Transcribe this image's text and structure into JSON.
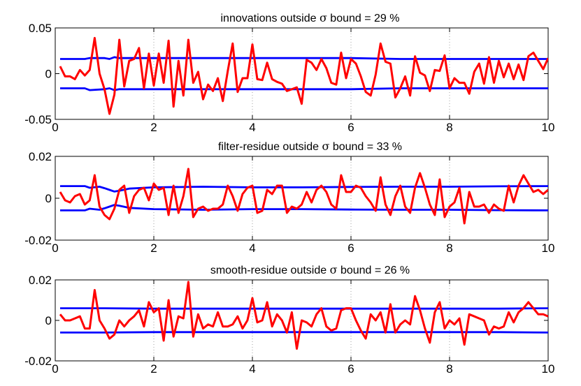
{
  "chart_data": [
    {
      "type": "line",
      "title": "innovations outside σ bound = 29 %",
      "title_prefix": "innovations outside",
      "title_symbol": "σ",
      "title_suffix": "bound = 29 %",
      "xlim": [
        0,
        10
      ],
      "ylim": [
        -0.05,
        0.05
      ],
      "xticks": [
        0,
        2,
        4,
        6,
        8,
        10
      ],
      "xtick_labels": [
        "0",
        "2",
        "4",
        "6",
        "8",
        "10"
      ],
      "yticks": [
        -0.05,
        0,
        0.05
      ],
      "ytick_labels": [
        "-0.05",
        "0",
        "0.05"
      ],
      "grid": "x",
      "x": [
        0.1,
        0.2,
        0.3,
        0.4,
        0.5,
        0.6,
        0.7,
        0.8,
        0.9,
        1.0,
        1.1,
        1.2,
        1.3,
        1.4,
        1.5,
        1.6,
        1.7,
        1.8,
        1.9,
        2.0,
        2.1,
        2.2,
        2.3,
        2.4,
        2.5,
        2.6,
        2.7,
        2.8,
        2.9,
        3.0,
        3.1,
        3.2,
        3.3,
        3.4,
        3.5,
        3.6,
        3.7,
        3.8,
        3.9,
        4.0,
        4.1,
        4.2,
        4.3,
        4.4,
        4.5,
        4.6,
        4.7,
        4.8,
        4.9,
        5.0,
        5.1,
        5.2,
        5.3,
        5.4,
        5.5,
        5.6,
        5.7,
        5.8,
        5.9,
        6.0,
        6.1,
        6.2,
        6.3,
        6.4,
        6.5,
        6.6,
        6.7,
        6.8,
        6.9,
        7.0,
        7.1,
        7.2,
        7.3,
        7.4,
        7.5,
        7.6,
        7.7,
        7.8,
        7.9,
        8.0,
        8.1,
        8.2,
        8.3,
        8.4,
        8.5,
        8.6,
        8.7,
        8.8,
        8.9,
        9.0,
        9.1,
        9.2,
        9.3,
        9.4,
        9.5,
        9.6,
        9.7,
        9.8,
        9.9,
        10.0
      ],
      "series": [
        {
          "role": "upper bound",
          "color": "#0000ff",
          "x": [
            0.1,
            0.6,
            0.7,
            1.0,
            1.1,
            1.2,
            1.3,
            1.5,
            2.0,
            3.0,
            4.0,
            5.0,
            6.0,
            7.0,
            8.0,
            9.0,
            10.0
          ],
          "values": [
            0.016,
            0.016,
            0.017,
            0.017,
            0.016,
            0.018,
            0.017,
            0.017,
            0.017,
            0.017,
            0.017,
            0.017,
            0.017,
            0.016,
            0.016,
            0.016,
            0.016
          ]
        },
        {
          "role": "lower bound",
          "color": "#0000ff",
          "x": [
            0.1,
            0.6,
            0.7,
            1.0,
            1.1,
            1.2,
            1.3,
            1.5,
            2.0,
            3.0,
            4.0,
            5.0,
            6.0,
            7.0,
            8.0,
            9.0,
            10.0
          ],
          "values": [
            -0.016,
            -0.016,
            -0.018,
            -0.017,
            -0.016,
            -0.018,
            -0.017,
            -0.017,
            -0.017,
            -0.017,
            -0.017,
            -0.017,
            -0.017,
            -0.016,
            -0.016,
            -0.016,
            -0.016
          ]
        },
        {
          "role": "innovations",
          "color": "#ff0000",
          "values": [
            0.008,
            -0.003,
            -0.003,
            -0.006,
            0.004,
            -0.002,
            0.004,
            0.039,
            0.0,
            -0.017,
            -0.044,
            -0.023,
            0.037,
            -0.014,
            0.014,
            0.016,
            0.028,
            -0.016,
            0.022,
            -0.013,
            0.022,
            -0.01,
            0.036,
            -0.036,
            0.014,
            -0.024,
            0.037,
            -0.01,
            0.002,
            -0.028,
            -0.012,
            -0.019,
            -0.005,
            -0.03,
            0.003,
            0.033,
            -0.02,
            -0.005,
            -0.005,
            0.032,
            -0.006,
            -0.007,
            0.012,
            -0.006,
            -0.009,
            -0.011,
            -0.019,
            -0.017,
            -0.015,
            -0.033,
            0.015,
            0.012,
            0.004,
            0.016,
            0.006,
            -0.01,
            -0.012,
            0.023,
            -0.005,
            0.016,
            0.011,
            -0.003,
            -0.02,
            -0.024,
            -0.001,
            0.033,
            0.013,
            0.011,
            -0.026,
            -0.016,
            -0.003,
            -0.024,
            0.019,
            0.001,
            -0.002,
            -0.019,
            0.004,
            0.003,
            0.02,
            -0.016,
            -0.005,
            -0.01,
            -0.01,
            -0.022,
            0.002,
            0.011,
            -0.011,
            0.018,
            -0.01,
            0.014,
            -0.004,
            0.011,
            -0.006,
            0.01,
            -0.007,
            0.019,
            0.023,
            0.014,
            0.005,
            0.017
          ]
        }
      ]
    },
    {
      "type": "line",
      "title": "filter-residue outside σ bound = 33 %",
      "title_prefix": "filter-residue outside",
      "title_symbol": "σ",
      "title_suffix": "bound = 33 %",
      "xlim": [
        0,
        10
      ],
      "ylim": [
        -0.02,
        0.02
      ],
      "xticks": [
        0,
        2,
        4,
        6,
        8,
        10
      ],
      "xtick_labels": [
        "0",
        "2",
        "4",
        "6",
        "8",
        "10"
      ],
      "yticks": [
        -0.02,
        0,
        0.02
      ],
      "ytick_labels": [
        "-0.02",
        "0",
        "0.02"
      ],
      "grid": "x",
      "x": [
        0.1,
        0.2,
        0.3,
        0.4,
        0.5,
        0.6,
        0.7,
        0.8,
        0.9,
        1.0,
        1.1,
        1.2,
        1.3,
        1.4,
        1.5,
        1.6,
        1.7,
        1.8,
        1.9,
        2.0,
        2.1,
        2.2,
        2.3,
        2.4,
        2.5,
        2.6,
        2.7,
        2.8,
        2.9,
        3.0,
        3.1,
        3.2,
        3.3,
        3.4,
        3.5,
        3.6,
        3.7,
        3.8,
        3.9,
        4.0,
        4.1,
        4.2,
        4.3,
        4.4,
        4.5,
        4.6,
        4.7,
        4.8,
        4.9,
        5.0,
        5.1,
        5.2,
        5.3,
        5.4,
        5.5,
        5.6,
        5.7,
        5.8,
        5.9,
        6.0,
        6.1,
        6.2,
        6.3,
        6.4,
        6.5,
        6.6,
        6.7,
        6.8,
        6.9,
        7.0,
        7.1,
        7.2,
        7.3,
        7.4,
        7.5,
        7.6,
        7.7,
        7.8,
        7.9,
        8.0,
        8.1,
        8.2,
        8.3,
        8.4,
        8.5,
        8.6,
        8.7,
        8.8,
        8.9,
        9.0,
        9.1,
        9.2,
        9.3,
        9.4,
        9.5,
        9.6,
        9.7,
        9.8,
        9.9,
        10.0
      ],
      "series": [
        {
          "role": "upper bound",
          "color": "#0000ff",
          "x": [
            0.1,
            0.6,
            0.7,
            0.9,
            1.0,
            1.1,
            1.2,
            1.3,
            1.5,
            2.0,
            3.0,
            4.0,
            5.0,
            6.0,
            7.0,
            8.0,
            9.0,
            10.0
          ],
          "values": [
            0.0058,
            0.0058,
            0.005,
            0.0055,
            0.0048,
            0.004,
            0.0032,
            0.0036,
            0.0046,
            0.0052,
            0.0055,
            0.0052,
            0.0052,
            0.0054,
            0.0055,
            0.0055,
            0.0057,
            0.0058
          ]
        },
        {
          "role": "lower bound",
          "color": "#0000ff",
          "x": [
            0.1,
            0.6,
            0.7,
            0.9,
            1.0,
            1.1,
            1.2,
            1.3,
            1.5,
            2.0,
            3.0,
            4.0,
            5.0,
            6.0,
            7.0,
            8.0,
            9.0,
            10.0
          ],
          "values": [
            -0.0058,
            -0.0058,
            -0.005,
            -0.0055,
            -0.0048,
            -0.004,
            -0.0032,
            -0.0036,
            -0.0046,
            -0.0052,
            -0.0055,
            -0.0052,
            -0.0052,
            -0.0054,
            -0.0055,
            -0.0055,
            -0.0057,
            -0.0058
          ]
        },
        {
          "role": "filter-residue",
          "color": "#ff0000",
          "values": [
            0.003,
            -0.001,
            -0.002,
            0.001,
            0.002,
            -0.003,
            -0.001,
            0.011,
            -0.004,
            -0.008,
            -0.01,
            -0.005,
            0.004,
            0.006,
            -0.007,
            0.001,
            0.004,
            0.005,
            -0.001,
            0.007,
            0.004,
            0.005,
            -0.008,
            0.006,
            -0.007,
            0.001,
            0.014,
            -0.009,
            -0.005,
            -0.004,
            -0.006,
            -0.005,
            -0.005,
            -0.003,
            0.006,
            0.001,
            -0.006,
            0.002,
            0.005,
            0.006,
            -0.007,
            -0.006,
            0.004,
            0.002,
            0.006,
            0.006,
            -0.007,
            -0.004,
            -0.005,
            -0.003,
            0.003,
            -0.002,
            0.004,
            0.006,
            0.003,
            -0.003,
            -0.005,
            0.011,
            0.003,
            0.003,
            0.006,
            0.005,
            0.001,
            -0.002,
            -0.006,
            0.01,
            -0.003,
            -0.008,
            0.001,
            0.006,
            -0.004,
            -0.007,
            0.005,
            0.012,
            0.005,
            -0.003,
            -0.008,
            0.009,
            -0.009,
            -0.004,
            -0.002,
            0.005,
            -0.012,
            0.003,
            -0.004,
            -0.004,
            -0.003,
            -0.007,
            -0.003,
            -0.005,
            -0.006,
            0.006,
            -0.002,
            0.006,
            0.011,
            0.007,
            0.003,
            0.004,
            0.002,
            0.004
          ]
        }
      ]
    },
    {
      "type": "line",
      "title": "smooth-residue outside σ bound = 26 %",
      "title_prefix": "smooth-residue outside",
      "title_symbol": "σ",
      "title_suffix": "bound = 26 %",
      "xlim": [
        0,
        10
      ],
      "ylim": [
        -0.02,
        0.02
      ],
      "xticks": [
        0,
        2,
        4,
        6,
        8,
        10
      ],
      "xtick_labels": [
        "0",
        "2",
        "4",
        "6",
        "8",
        "10"
      ],
      "yticks": [
        -0.02,
        0,
        0.02
      ],
      "ytick_labels": [
        "-0.02",
        "0",
        "0.02"
      ],
      "grid": "x",
      "x": [
        0.1,
        0.2,
        0.3,
        0.4,
        0.5,
        0.6,
        0.7,
        0.8,
        0.9,
        1.0,
        1.1,
        1.2,
        1.3,
        1.4,
        1.5,
        1.6,
        1.7,
        1.8,
        1.9,
        2.0,
        2.1,
        2.2,
        2.3,
        2.4,
        2.5,
        2.6,
        2.7,
        2.8,
        2.9,
        3.0,
        3.1,
        3.2,
        3.3,
        3.4,
        3.5,
        3.6,
        3.7,
        3.8,
        3.9,
        4.0,
        4.1,
        4.2,
        4.3,
        4.4,
        4.5,
        4.6,
        4.7,
        4.8,
        4.9,
        5.0,
        5.1,
        5.2,
        5.3,
        5.4,
        5.5,
        5.6,
        5.7,
        5.8,
        5.9,
        6.0,
        6.1,
        6.2,
        6.3,
        6.4,
        6.5,
        6.6,
        6.7,
        6.8,
        6.9,
        7.0,
        7.1,
        7.2,
        7.3,
        7.4,
        7.5,
        7.6,
        7.7,
        7.8,
        7.9,
        8.0,
        8.1,
        8.2,
        8.3,
        8.4,
        8.5,
        8.6,
        8.7,
        8.8,
        8.9,
        9.0,
        9.1,
        9.2,
        9.3,
        9.4,
        9.5,
        9.6,
        9.7,
        9.8,
        9.9,
        10.0
      ],
      "series": [
        {
          "role": "upper bound",
          "color": "#0000ff",
          "x": [
            0.1,
            1.0,
            2.0,
            3.0,
            4.0,
            5.0,
            6.0,
            7.0,
            8.0,
            9.0,
            10.0
          ],
          "values": [
            0.006,
            0.006,
            0.0058,
            0.0058,
            0.0058,
            0.0058,
            0.0058,
            0.0058,
            0.0058,
            0.0058,
            0.006
          ]
        },
        {
          "role": "lower bound",
          "color": "#0000ff",
          "x": [
            0.1,
            1.0,
            2.0,
            3.0,
            4.0,
            5.0,
            6.0,
            7.0,
            8.0,
            9.0,
            10.0
          ],
          "values": [
            -0.006,
            -0.006,
            -0.0058,
            -0.0058,
            -0.0058,
            -0.0058,
            -0.0058,
            -0.0058,
            -0.0058,
            -0.0058,
            -0.006
          ]
        },
        {
          "role": "smooth-residue",
          "color": "#ff0000",
          "values": [
            0.003,
            0.0,
            0.0,
            0.001,
            0.002,
            -0.004,
            -0.004,
            0.015,
            0.0,
            -0.004,
            -0.009,
            -0.007,
            0.0,
            -0.003,
            0.0,
            0.002,
            0.005,
            -0.003,
            0.009,
            0.004,
            0.006,
            -0.01,
            0.01,
            -0.008,
            0.002,
            0.001,
            0.019,
            -0.008,
            0.003,
            -0.004,
            -0.002,
            -0.003,
            0.004,
            -0.003,
            -0.003,
            -0.002,
            0.002,
            -0.004,
            0.0,
            0.011,
            -0.001,
            0.0,
            0.009,
            -0.003,
            0.003,
            0.0,
            -0.006,
            0.004,
            -0.014,
            0.0,
            -0.001,
            -0.003,
            0.003,
            0.006,
            -0.003,
            -0.005,
            -0.004,
            0.005,
            0.006,
            0.006,
            0.0,
            -0.005,
            -0.009,
            0.003,
            0.0,
            0.004,
            -0.006,
            0.008,
            -0.006,
            -0.002,
            0.0,
            -0.002,
            0.012,
            0.005,
            -0.004,
            -0.011,
            0.004,
            0.009,
            -0.004,
            0.0,
            -0.002,
            0.001,
            -0.012,
            0.003,
            0.002,
            0.001,
            0.0,
            -0.007,
            -0.003,
            -0.004,
            -0.003,
            0.004,
            -0.001,
            0.004,
            0.006,
            0.009,
            0.006,
            0.003,
            0.003,
            0.002
          ]
        }
      ]
    }
  ]
}
